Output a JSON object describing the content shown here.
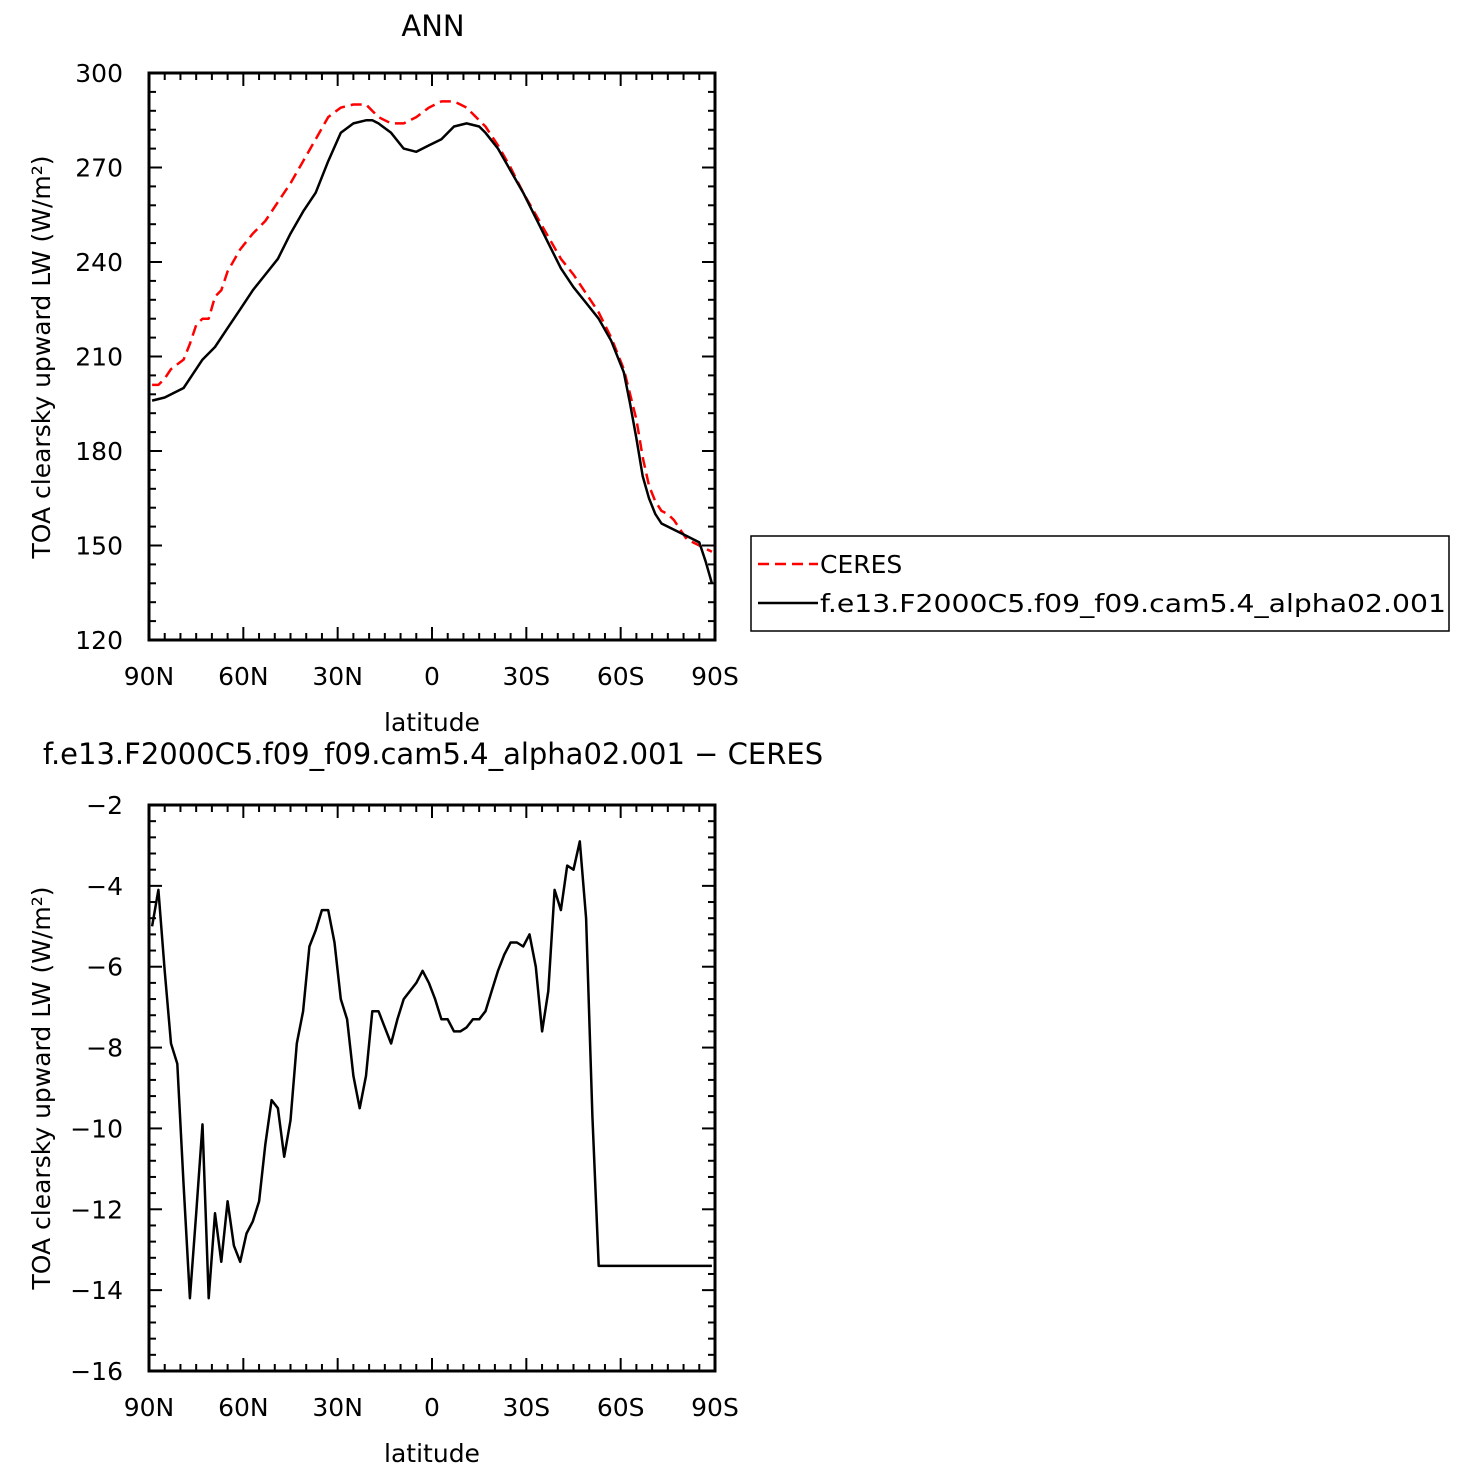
{
  "colors": {
    "ceres": "#ff0000",
    "model": "#000000",
    "axes": "#000000",
    "background": "#ffffff"
  },
  "chart_data": [
    {
      "type": "line",
      "title": "ANN",
      "xlabel": "latitude",
      "ylabel": "TOA clearsky upward LW (W/m²)",
      "xlim": [
        90,
        -90
      ],
      "ylim": [
        120,
        300
      ],
      "x_ticks": [
        {
          "value": 90,
          "label": "90N"
        },
        {
          "value": 60,
          "label": "60N"
        },
        {
          "value": 30,
          "label": "30N"
        },
        {
          "value": 0,
          "label": "0"
        },
        {
          "value": -30,
          "label": "30S"
        },
        {
          "value": -60,
          "label": "60S"
        },
        {
          "value": -90,
          "label": "90S"
        }
      ],
      "y_ticks": [
        {
          "value": 120,
          "label": "120"
        },
        {
          "value": 150,
          "label": "150"
        },
        {
          "value": 180,
          "label": "180"
        },
        {
          "value": 210,
          "label": "210"
        },
        {
          "value": 240,
          "label": "240"
        },
        {
          "value": 270,
          "label": "270"
        },
        {
          "value": 300,
          "label": "300"
        }
      ],
      "legend": "right",
      "series": [
        {
          "name": "CERES",
          "style": "dashed",
          "x": [
            89,
            87,
            85,
            83,
            79,
            77,
            75,
            73,
            71,
            69,
            67,
            65,
            61,
            57,
            53,
            49,
            45,
            41,
            37,
            33,
            29,
            25,
            21,
            17,
            13,
            9,
            5,
            1,
            -3,
            -7,
            -11,
            -15,
            -17,
            -21,
            -25,
            -29,
            -33,
            -37,
            -41,
            -45,
            -49,
            -53,
            -57,
            -61,
            -65,
            -67,
            -69,
            -71,
            -73,
            -75,
            -77,
            -79,
            -81,
            -85,
            -87,
            -89
          ],
          "y": [
            201,
            201,
            203,
            206,
            209,
            214,
            220,
            222,
            222,
            229,
            231,
            237,
            244,
            249,
            253,
            259,
            265,
            272,
            279,
            286,
            289,
            290,
            290,
            286,
            284,
            284,
            286,
            289,
            291,
            291,
            289,
            285,
            283,
            277,
            270,
            262,
            255,
            248,
            241,
            236,
            230,
            224,
            216,
            206,
            190,
            178,
            169,
            164,
            161,
            160,
            158,
            155,
            152,
            150,
            149,
            148
          ]
        },
        {
          "name": "f.e13.F2000C5.f09_f09.cam5.4_alpha02.001",
          "style": "solid",
          "x": [
            89,
            85,
            79,
            73,
            69,
            65,
            61,
            57,
            53,
            49,
            45,
            41,
            37,
            33,
            29,
            25,
            21,
            19,
            17,
            13,
            9,
            5,
            1,
            -3,
            -7,
            -11,
            -15,
            -17,
            -21,
            -25,
            -29,
            -33,
            -37,
            -41,
            -45,
            -49,
            -53,
            -57,
            -61,
            -63,
            -65,
            -67,
            -69,
            -71,
            -73,
            -75,
            -77,
            -79,
            -81,
            -85,
            -87,
            -89
          ],
          "y": [
            196,
            197,
            200,
            209,
            213,
            219,
            225,
            231,
            236,
            241,
            249,
            256,
            262,
            272,
            281,
            284,
            285,
            285,
            284,
            281,
            276,
            275,
            277,
            279,
            283,
            284,
            283,
            281,
            276,
            269,
            262,
            254,
            246,
            238,
            232,
            227,
            222,
            215,
            205,
            195,
            184,
            172,
            165,
            160,
            157,
            156,
            155,
            154,
            153,
            151,
            145,
            138
          ]
        }
      ]
    },
    {
      "type": "line",
      "title": "f.e13.F2000C5.f09_f09.cam5.4_alpha02.001 − CERES",
      "xlabel": "latitude",
      "ylabel": "TOA clearsky upward LW (W/m²)",
      "xlim": [
        90,
        -90
      ],
      "ylim": [
        -16,
        -2
      ],
      "x_ticks": [
        {
          "value": 90,
          "label": "90N"
        },
        {
          "value": 60,
          "label": "60N"
        },
        {
          "value": 30,
          "label": "30N"
        },
        {
          "value": 0,
          "label": "0"
        },
        {
          "value": -30,
          "label": "30S"
        },
        {
          "value": -60,
          "label": "60S"
        },
        {
          "value": -90,
          "label": "90S"
        }
      ],
      "y_ticks": [
        {
          "value": -16,
          "label": "−16"
        },
        {
          "value": -14,
          "label": "−14"
        },
        {
          "value": -12,
          "label": "−12"
        },
        {
          "value": -10,
          "label": "−10"
        },
        {
          "value": -8,
          "label": "−8"
        },
        {
          "value": -6,
          "label": "−6"
        },
        {
          "value": -4,
          "label": "−4"
        },
        {
          "value": -2,
          "label": "−2"
        }
      ],
      "series": [
        {
          "style": "solid",
          "x": [
            89,
            87,
            85,
            83,
            81,
            79,
            77,
            75,
            73,
            71,
            69,
            67,
            65,
            63,
            61,
            59,
            57,
            55,
            53,
            51,
            49,
            47,
            45,
            43,
            41,
            39,
            37,
            35,
            33,
            31,
            29,
            27,
            25,
            23,
            21,
            19,
            17,
            15,
            13,
            11,
            9,
            7,
            5,
            3,
            1,
            -1,
            -3,
            -5,
            -7,
            -9,
            -11,
            -13,
            -15,
            -17,
            -19,
            -21,
            -23,
            -25,
            -27,
            -29,
            -31,
            -33,
            -35,
            -37,
            -39,
            -41,
            -43,
            -45,
            -47,
            -49,
            -51,
            -53,
            -55,
            -57,
            -59,
            -61,
            -63,
            -65,
            -67,
            -69,
            -71,
            -73,
            -75,
            -77,
            -79,
            -81,
            -83,
            -85,
            -87,
            -89
          ],
          "y": [
            -5.0,
            -4.1,
            -6.1,
            -7.9,
            -8.4,
            -11.4,
            -14.2,
            -12.1,
            -9.9,
            -14.2,
            -12.1,
            -13.3,
            -11.8,
            -12.9,
            -13.3,
            -12.6,
            -12.3,
            -11.8,
            -10.4,
            -9.3,
            -9.5,
            -10.7,
            -9.8,
            -7.9,
            -7.1,
            -5.5,
            -5.1,
            -4.6,
            -4.6,
            -5.4,
            -6.8,
            -7.3,
            -8.7,
            -9.5,
            -8.7,
            -7.1,
            -7.1,
            -7.5,
            -7.9,
            -7.3,
            -6.8,
            -6.6,
            -6.4,
            -6.1,
            -6.4,
            -6.8,
            -7.3,
            -7.3,
            -7.6,
            -7.6,
            -7.5,
            -7.3,
            -7.3,
            -7.1,
            -6.6,
            -6.1,
            -5.7,
            -5.4,
            -5.4,
            -5.5,
            -5.2,
            -6.0,
            -7.6,
            -6.6,
            -4.1,
            -4.6,
            -3.5,
            -3.6,
            -2.9,
            -4.8,
            -9.7,
            -13.4,
            -13.4,
            -13.4,
            -13.4,
            -13.4,
            -13.4,
            -13.4,
            -13.4,
            -13.4,
            -13.4,
            -13.4,
            -13.4,
            -13.4,
            -13.4,
            -13.4,
            -13.4,
            -13.4,
            -13.4,
            -13.4
          ]
        }
      ]
    }
  ]
}
